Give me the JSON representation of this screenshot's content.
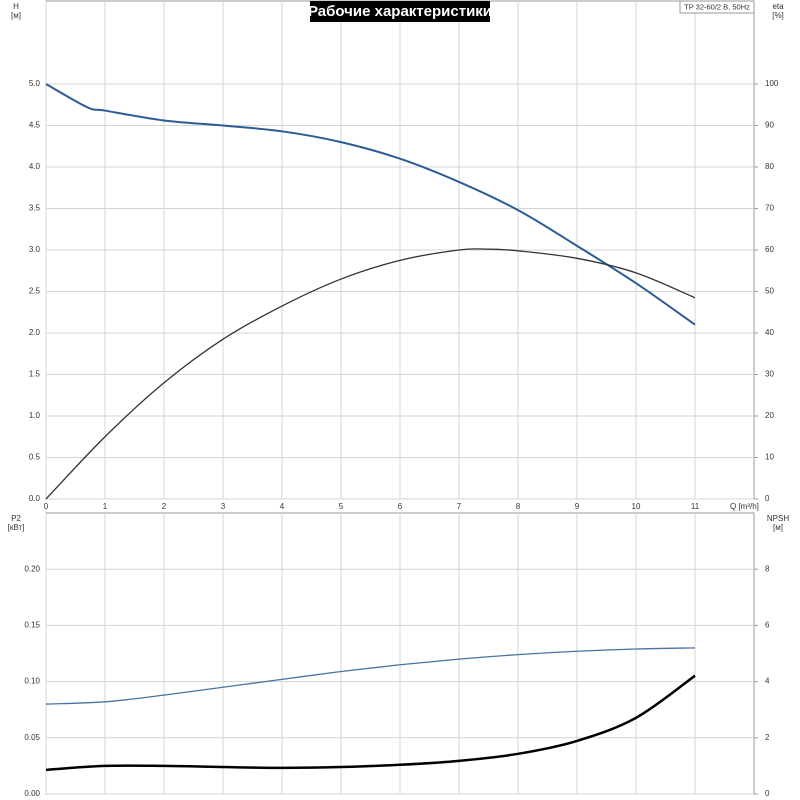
{
  "chart_data": [
    {
      "type": "line",
      "title": "Рабочие характеристики",
      "annotation": "TP 32-60/2 B, 50Hz",
      "y_label": "H",
      "y_unit": "[м]",
      "y2_label": "eta",
      "y2_unit": "[%]",
      "x_label": "Q [m³/h]",
      "xlim": [
        0,
        12
      ],
      "xticks": [
        0,
        1,
        2,
        3,
        4,
        5,
        6,
        7,
        8,
        9,
        10,
        11
      ],
      "ylim": [
        0,
        6
      ],
      "yticks": [
        {
          "value": 0,
          "label": "0.0"
        },
        {
          "value": 0.5,
          "label": "0.5"
        },
        {
          "value": 1,
          "label": "1.0"
        },
        {
          "value": 1.5,
          "label": "1.5"
        },
        {
          "value": 2,
          "label": "2.0"
        },
        {
          "value": 2.5,
          "label": "2.5"
        },
        {
          "value": 3,
          "label": "3.0"
        },
        {
          "value": 3.5,
          "label": "3.5"
        },
        {
          "value": 4,
          "label": "4.0"
        },
        {
          "value": 4.5,
          "label": "4.5"
        },
        {
          "value": 5,
          "label": "5.0"
        }
      ],
      "y2lim": [
        0,
        120
      ],
      "y2ticks": [
        0,
        10,
        20,
        30,
        40,
        50,
        60,
        70,
        80,
        90,
        100
      ],
      "grid": true,
      "series": [
        {
          "color": "#2b5c94",
          "width": 2,
          "x": [
            0,
            0.7,
            1,
            2,
            3,
            4,
            5,
            6,
            7,
            8,
            9,
            10,
            11
          ],
          "values": [
            5.0,
            4.72,
            4.68,
            4.56,
            4.5,
            4.43,
            4.3,
            4.1,
            3.82,
            3.48,
            3.05,
            2.6,
            2.1
          ]
        },
        {
          "color": "#333333",
          "width": 1.3,
          "axis": "y2",
          "x": [
            0,
            1,
            2,
            3,
            4,
            5,
            6,
            7,
            7.5,
            8,
            9,
            10,
            11
          ],
          "values": [
            0,
            15,
            28,
            38.5,
            46.5,
            53,
            57.5,
            60,
            60.2,
            59.8,
            58,
            54.5,
            48.5
          ]
        }
      ]
    },
    {
      "type": "line",
      "y_label": "P2",
      "y_unit": "[кВт]",
      "y2_label": "NPSH",
      "y2_unit": "[м]",
      "xlim": [
        0,
        12
      ],
      "xticks": [
        0,
        1,
        2,
        3,
        4,
        5,
        6,
        7,
        8,
        9,
        10,
        11
      ],
      "ylim": [
        0,
        0.25
      ],
      "yticks": [
        {
          "value": 0,
          "label": "0.00"
        },
        {
          "value": 0.05,
          "label": "0.05"
        },
        {
          "value": 0.1,
          "label": "0.10"
        },
        {
          "value": 0.15,
          "label": "0.15"
        },
        {
          "value": 0.2,
          "label": "0.20"
        }
      ],
      "y2lim": [
        0,
        10
      ],
      "y2ticks": [
        0,
        2,
        4,
        6,
        8
      ],
      "grid": true,
      "series": [
        {
          "color": "#4a73a0",
          "width": 1.3,
          "x": [
            0,
            1,
            2,
            3,
            4,
            5,
            6,
            7,
            8,
            9,
            10,
            11
          ],
          "values": [
            0.08,
            0.082,
            0.088,
            0.095,
            0.102,
            0.109,
            0.115,
            0.12,
            0.124,
            0.127,
            0.129,
            0.13
          ]
        },
        {
          "color": "#000000",
          "width": 2.5,
          "axis": "y2",
          "x": [
            0,
            1,
            2,
            3,
            4,
            5,
            6,
            7,
            8,
            9,
            10,
            11
          ],
          "values": [
            0.86,
            1.0,
            1.0,
            0.96,
            0.93,
            0.96,
            1.04,
            1.18,
            1.43,
            1.89,
            2.71,
            4.21
          ]
        }
      ]
    }
  ]
}
